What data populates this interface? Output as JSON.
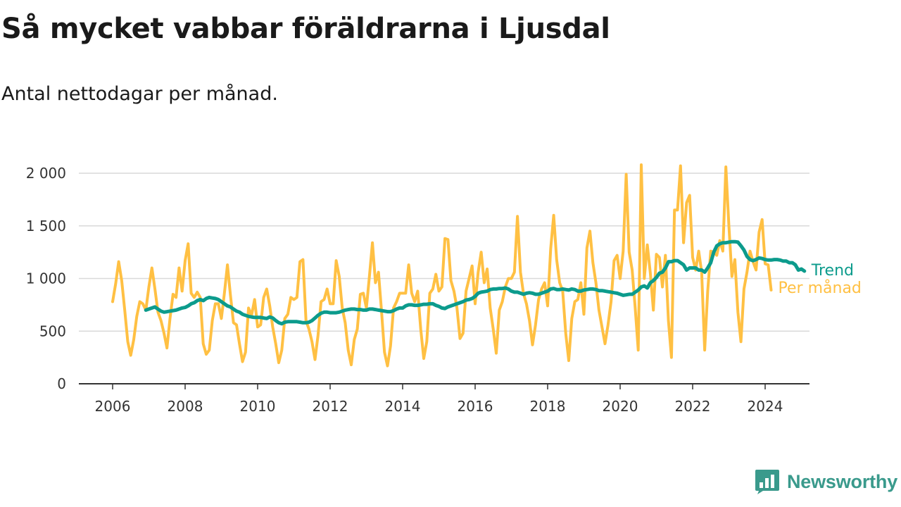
{
  "header": {
    "title": "Så mycket vabbar föräldrarna i Ljusdal",
    "subtitle": "Antal nettodagar per månad."
  },
  "brand": {
    "name": "Newsworthy",
    "color": "#3a9a8c"
  },
  "colors": {
    "monthly": "#ffc043",
    "trend": "#0c9b8c"
  },
  "chart_data": {
    "type": "line",
    "title": "Så mycket vabbar föräldrarna i Ljusdal",
    "subtitle": "Antal nettodagar per månad.",
    "xlabel": "",
    "ylabel": "",
    "xlim": [
      2005.7,
      2025.2
    ],
    "ylim": [
      0,
      2000
    ],
    "grid": true,
    "x_ticks": [
      2006,
      2008,
      2010,
      2012,
      2014,
      2016,
      2018,
      2020,
      2022,
      2024
    ],
    "x_tick_labels": [
      "2006",
      "2008",
      "2010",
      "2012",
      "2014",
      "2016",
      "2018",
      "2020",
      "2022",
      "2024"
    ],
    "y_ticks": [
      0,
      500,
      1000,
      1500,
      2000
    ],
    "y_tick_labels": [
      "0",
      "500",
      "1 000",
      "1 500",
      "2 000"
    ],
    "legend": "inline-right",
    "series": [
      {
        "name": "Per månad",
        "color": "#ffc043",
        "x_start": 2006.0,
        "step": 0.08333,
        "values": [
          780,
          950,
          1160,
          980,
          700,
          400,
          270,
          420,
          640,
          780,
          760,
          700,
          920,
          1100,
          900,
          680,
          600,
          480,
          340,
          620,
          850,
          820,
          1100,
          880,
          1170,
          1330,
          860,
          820,
          870,
          820,
          380,
          280,
          320,
          600,
          760,
          760,
          620,
          860,
          1130,
          840,
          580,
          560,
          380,
          210,
          300,
          720,
          650,
          800,
          540,
          560,
          820,
          900,
          740,
          540,
          380,
          200,
          320,
          620,
          660,
          820,
          800,
          820,
          1160,
          1180,
          600,
          520,
          400,
          230,
          460,
          780,
          800,
          900,
          760,
          760,
          1170,
          1020,
          720,
          580,
          320,
          180,
          420,
          520,
          850,
          860,
          720,
          1020,
          1340,
          960,
          1060,
          700,
          300,
          170,
          360,
          720,
          780,
          860,
          860,
          860,
          1130,
          860,
          780,
          880,
          520,
          240,
          400,
          860,
          900,
          1040,
          880,
          920,
          1380,
          1370,
          980,
          880,
          720,
          430,
          480,
          880,
          1000,
          1120,
          760,
          1060,
          1250,
          960,
          1090,
          720,
          520,
          290,
          700,
          780,
          920,
          1000,
          1000,
          1060,
          1590,
          1060,
          860,
          760,
          600,
          370,
          560,
          800,
          900,
          960,
          740,
          1280,
          1600,
          1180,
          960,
          880,
          480,
          220,
          620,
          780,
          800,
          960,
          660,
          1290,
          1450,
          1150,
          960,
          700,
          540,
          380,
          560,
          780,
          1170,
          1220,
          1000,
          1260,
          1990,
          1250,
          1080,
          720,
          320,
          2080,
          1000,
          1320,
          1050,
          700,
          1230,
          1200,
          920,
          1220,
          600,
          250,
          1650,
          1650,
          2070,
          1340,
          1720,
          1790,
          1200,
          1080,
          1260,
          1060,
          320,
          880,
          1260,
          1250,
          1220,
          1360,
          1260,
          2060,
          1500,
          1020,
          1180,
          680,
          400,
          900,
          1060,
          1260,
          1160,
          1080,
          1440,
          1560,
          1140,
          1130,
          890
        ]
      },
      {
        "name": "Trend",
        "color": "#0c9b8c",
        "x_start": 2006.917,
        "step": 0.08333,
        "values": [
          700,
          710,
          720,
          730,
          710,
          690,
          680,
          685,
          690,
          695,
          700,
          710,
          720,
          725,
          740,
          760,
          770,
          790,
          800,
          790,
          810,
          820,
          815,
          810,
          800,
          780,
          760,
          740,
          730,
          710,
          690,
          680,
          660,
          650,
          640,
          635,
          630,
          630,
          630,
          625,
          620,
          635,
          625,
          600,
          580,
          570,
          585,
          590,
          590,
          590,
          590,
          585,
          580,
          580,
          585,
          600,
          625,
          650,
          670,
          680,
          680,
          675,
          675,
          675,
          680,
          690,
          700,
          705,
          710,
          710,
          705,
          705,
          700,
          700,
          710,
          710,
          705,
          700,
          695,
          690,
          685,
          685,
          695,
          710,
          720,
          720,
          740,
          750,
          750,
          745,
          745,
          750,
          755,
          755,
          760,
          760,
          745,
          735,
          720,
          715,
          730,
          740,
          750,
          760,
          770,
          780,
          795,
          800,
          810,
          830,
          860,
          870,
          875,
          880,
          895,
          900,
          900,
          905,
          905,
          910,
          900,
          880,
          870,
          870,
          860,
          850,
          860,
          865,
          860,
          850,
          850,
          860,
          870,
          880,
          900,
          905,
          895,
          895,
          900,
          895,
          890,
          900,
          895,
          880,
          880,
          890,
          895,
          900,
          900,
          895,
          885,
          885,
          880,
          875,
          870,
          865,
          860,
          850,
          840,
          845,
          850,
          850,
          870,
          890,
          920,
          930,
          910,
          960,
          980,
          1010,
          1050,
          1060,
          1100,
          1160,
          1160,
          1170,
          1170,
          1150,
          1130,
          1080,
          1100,
          1100,
          1100,
          1080,
          1080,
          1060,
          1100,
          1150,
          1250,
          1310,
          1330,
          1340,
          1340,
          1345,
          1350,
          1350,
          1345,
          1310,
          1270,
          1210,
          1180,
          1170,
          1180,
          1195,
          1190,
          1180,
          1175,
          1175,
          1180,
          1180,
          1175,
          1165,
          1165,
          1150,
          1150,
          1130,
          1080,
          1090,
          1070
        ]
      }
    ]
  }
}
